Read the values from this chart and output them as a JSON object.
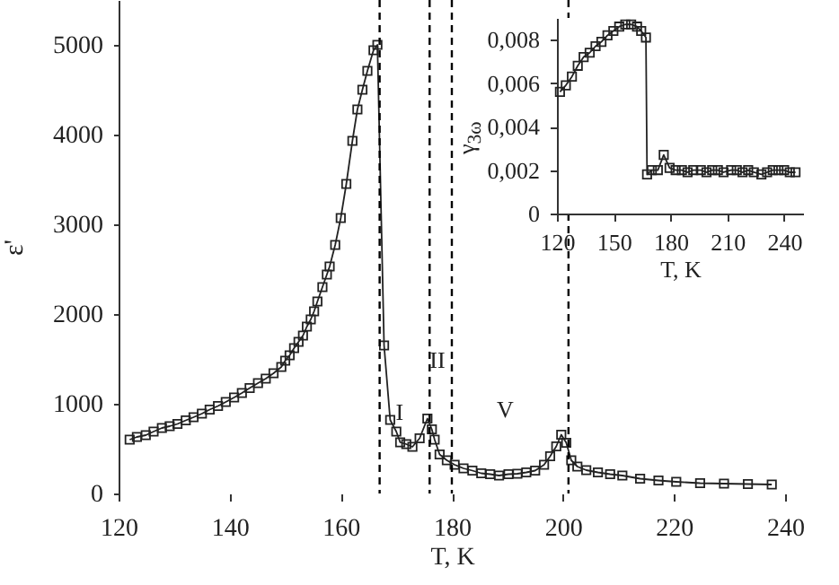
{
  "chart_data": [
    {
      "type": "line",
      "xlabel": "T, K",
      "ylabel": "ε'",
      "marker": "square",
      "line_style": "solid",
      "grid": false,
      "xlim": [
        120,
        240
      ],
      "xticks": [
        120,
        140,
        160,
        180,
        200,
        220,
        240
      ],
      "ylim": [
        0,
        5500
      ],
      "yticks": [
        0,
        1000,
        2000,
        3000,
        4000,
        5000
      ],
      "series": [
        {
          "color": "#222222",
          "x": [
            122.0,
            123.3,
            124.9,
            126.3,
            127.8,
            129.2,
            130.6,
            132.1,
            133.5,
            135.0,
            136.4,
            137.9,
            139.3,
            140.8,
            142.2,
            143.6,
            145.1,
            146.5,
            147.9,
            149.3,
            150.0,
            150.8,
            151.6,
            152.4,
            153.2,
            153.9,
            154.6,
            155.2,
            155.8,
            156.7,
            157.5,
            158.0,
            159.0,
            160.0,
            161.0,
            162.1,
            163.0,
            163.9,
            164.8,
            165.9,
            166.6,
            167.8,
            168.9,
            170.0,
            170.7,
            171.8,
            172.9,
            174.2,
            175.6,
            176.4,
            176.9,
            177.8,
            179.1,
            180.5,
            182.1,
            183.7,
            185.3,
            186.9,
            188.5,
            190.2,
            191.8,
            193.4,
            195.0,
            196.6,
            197.7,
            198.8,
            199.7,
            200.6,
            201.5,
            202.6,
            204.2,
            206.3,
            208.5,
            210.7,
            213.9,
            217.2,
            220.4,
            224.7,
            229.0,
            233.3,
            237.6
          ],
          "values": [
            600,
            630,
            650,
            690,
            730,
            750,
            775,
            815,
            850,
            890,
            935,
            975,
            1020,
            1070,
            1120,
            1175,
            1230,
            1280,
            1340,
            1410,
            1480,
            1540,
            1620,
            1690,
            1760,
            1860,
            1940,
            2030,
            2140,
            2300,
            2440,
            2530,
            2770,
            3070,
            3450,
            3930,
            4280,
            4500,
            4710,
            4940,
            5000,
            1650,
            820,
            690,
            570,
            550,
            520,
            615,
            835,
            715,
            600,
            435,
            370,
            320,
            280,
            255,
            225,
            215,
            200,
            215,
            220,
            235,
            255,
            320,
            415,
            525,
            655,
            565,
            370,
            300,
            260,
            235,
            215,
            200,
            165,
            145,
            130,
            115,
            110,
            105,
            100
          ]
        }
      ],
      "ref_lines": [
        {
          "axis": "x",
          "value": 167,
          "color": "#000000",
          "line_style": "dashed"
        },
        {
          "axis": "x",
          "value": 176,
          "color": "#000000",
          "line_style": "dashed"
        },
        {
          "axis": "x",
          "value": 180,
          "color": "#000000",
          "line_style": "dashed"
        },
        {
          "axis": "x",
          "value": 201,
          "color": "#000000",
          "line_style": "dashed"
        }
      ],
      "annotations": [
        {
          "text": "I",
          "x": 170.6,
          "y": 900
        },
        {
          "text": "II",
          "x": 177.4,
          "y": 1480
        },
        "V"
      ]
    },
    {
      "type": "line",
      "xlabel": "T, K",
      "ylabel": "γ$_{3ω}$",
      "marker": "square",
      "line_style": "solid",
      "grid": false,
      "xlim": [
        120,
        250
      ],
      "xticks": [
        120,
        150,
        180,
        210,
        240
      ],
      "ylim": [
        0,
        0.009
      ],
      "yticks": [
        {
          "value": 0,
          "label": "0"
        },
        {
          "value": 0.002,
          "label": "0,002"
        },
        {
          "value": 0.004,
          "label": "0,004"
        },
        {
          "value": 0.006,
          "label": "0,006"
        },
        {
          "value": 0.008,
          "label": "0,008"
        }
      ],
      "series": [
        {
          "color": "#222222",
          "x": [
            121.6,
            124.7,
            127.9,
            131.0,
            134.1,
            137.3,
            140.4,
            143.5,
            146.7,
            149.8,
            152.9,
            156.1,
            159.2,
            162.3,
            164.5,
            167.0,
            167.6,
            170.1,
            173.3,
            176.4,
            179.5,
            182.7,
            186,
            189,
            192,
            196,
            199,
            202,
            205,
            208,
            212,
            215,
            218,
            221,
            224,
            228,
            231,
            234,
            237,
            240,
            243,
            246
          ],
          "values": [
            0.0056,
            0.0059,
            0.0063,
            0.0068,
            0.0072,
            0.0074,
            0.0077,
            0.0079,
            0.0082,
            0.0084,
            0.0086,
            0.0087,
            0.0087,
            0.0086,
            0.0084,
            0.0081,
            0.0018,
            0.002,
            0.002,
            0.0027,
            0.0021,
            0.002,
            0.002,
            0.0019,
            0.002,
            0.002,
            0.0019,
            0.002,
            0.002,
            0.0019,
            0.002,
            0.002,
            0.0019,
            0.002,
            0.0019,
            0.0018,
            0.0019,
            0.002,
            0.002,
            0.002,
            0.0019,
            0.0019
          ]
        }
      ]
    }
  ]
}
